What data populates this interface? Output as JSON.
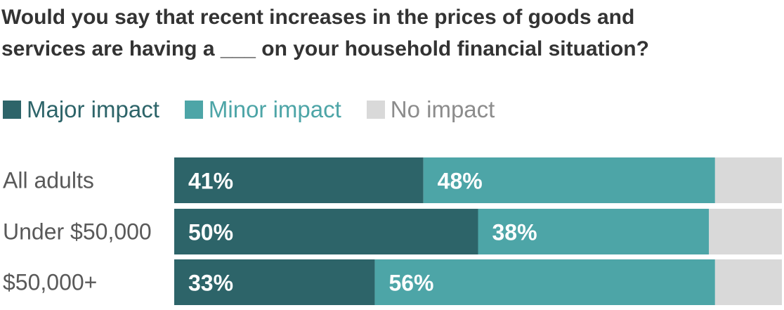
{
  "title_lines": [
    "Would you say that recent increases in the prices of goods and",
    "services are having a ___ on your household financial situation?"
  ],
  "colors": {
    "major": "#2d6469",
    "minor": "#4da5a7",
    "none": "#d9d9d9",
    "title": "#333333",
    "category_text": "#595959",
    "value_text": "#ffffff"
  },
  "legend": [
    {
      "label": "Major impact",
      "color": "#2d6469",
      "text_color": "#2d6469"
    },
    {
      "label": "Minor impact",
      "color": "#4da5a7",
      "text_color": "#4da5a7"
    },
    {
      "label": "No impact",
      "color": "#d9d9d9",
      "text_color": "#8c8c8c"
    }
  ],
  "chart_data": {
    "type": "bar",
    "orientation": "horizontal",
    "stacked": true,
    "title": "Would you say that recent increases in the prices of goods and services are having a ___ on your household financial situation?",
    "categories": [
      "All adults",
      "Under $50,000",
      "$50,000+"
    ],
    "series": [
      {
        "name": "Major impact",
        "values": [
          41,
          50,
          33
        ],
        "labels": [
          "41%",
          "50%",
          "33%"
        ]
      },
      {
        "name": "Minor impact",
        "values": [
          48,
          38,
          56
        ],
        "labels": [
          "48%",
          "38%",
          "56%"
        ]
      },
      {
        "name": "No impact",
        "values": [
          11,
          12,
          11
        ]
      }
    ],
    "xlim": [
      0,
      100
    ],
    "grid": false,
    "legend_position": "top-left"
  }
}
